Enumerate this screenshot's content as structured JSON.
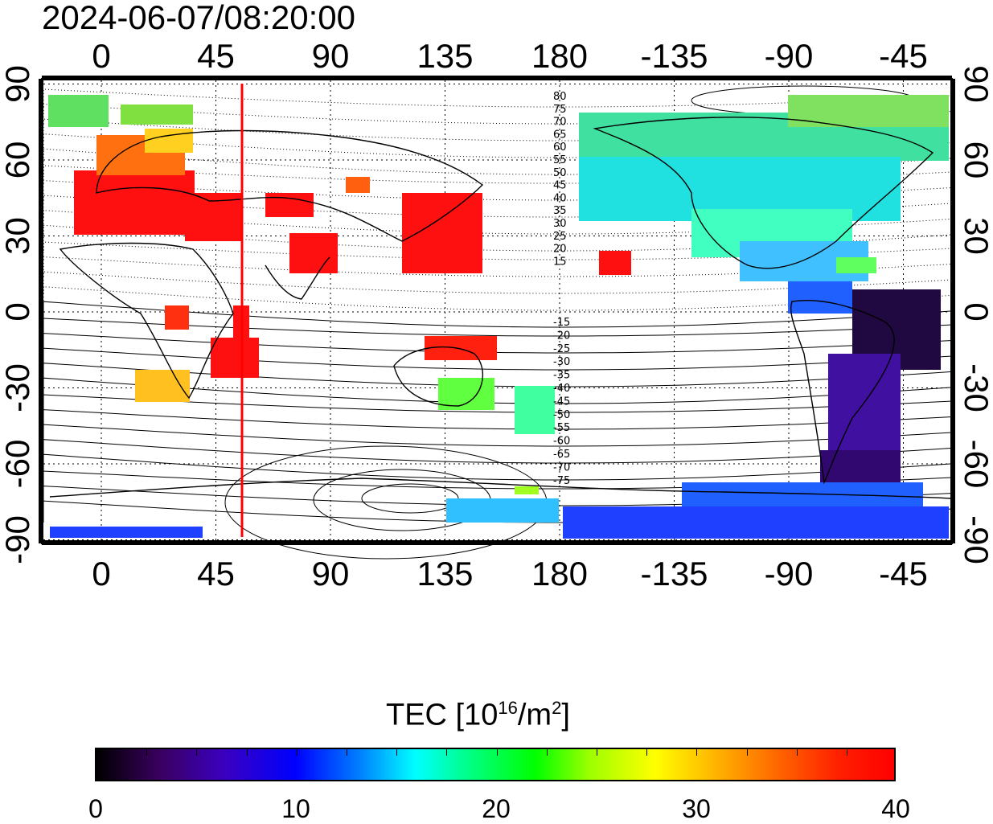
{
  "timestamp": "2024-06-07/08:20:00",
  "map": {
    "lon_labels": [
      "0",
      "45",
      "90",
      "135",
      "180",
      "-135",
      "-90",
      "-45"
    ],
    "lat_labels": [
      "90",
      "60",
      "30",
      "0",
      "-30",
      "-60",
      "-90"
    ],
    "magnetic_lat_labels_north": [
      "80",
      "75",
      "70",
      "65",
      "60",
      "55",
      "50",
      "45",
      "40",
      "35",
      "30",
      "25",
      "20",
      "15"
    ],
    "magnetic_lat_labels_south": [
      "-15",
      "-20",
      "-25",
      "-30",
      "-35",
      "-40",
      "-45",
      "-50",
      "-55",
      "-60",
      "-65",
      "-70",
      "-75"
    ],
    "marker_line_longitude": 55,
    "marker_line_color": "#ff0000"
  },
  "colorbar": {
    "title_main": "TEC  [10",
    "title_sup1": "16",
    "title_mid": "/m",
    "title_sup2": "2",
    "title_end": "]",
    "tick_labels": [
      "0",
      "10",
      "20",
      "30",
      "40"
    ],
    "colors": [
      "#000000",
      "#0000ff",
      "#00ffff",
      "#00ff00",
      "#ffff00",
      "#ff0000"
    ]
  }
}
